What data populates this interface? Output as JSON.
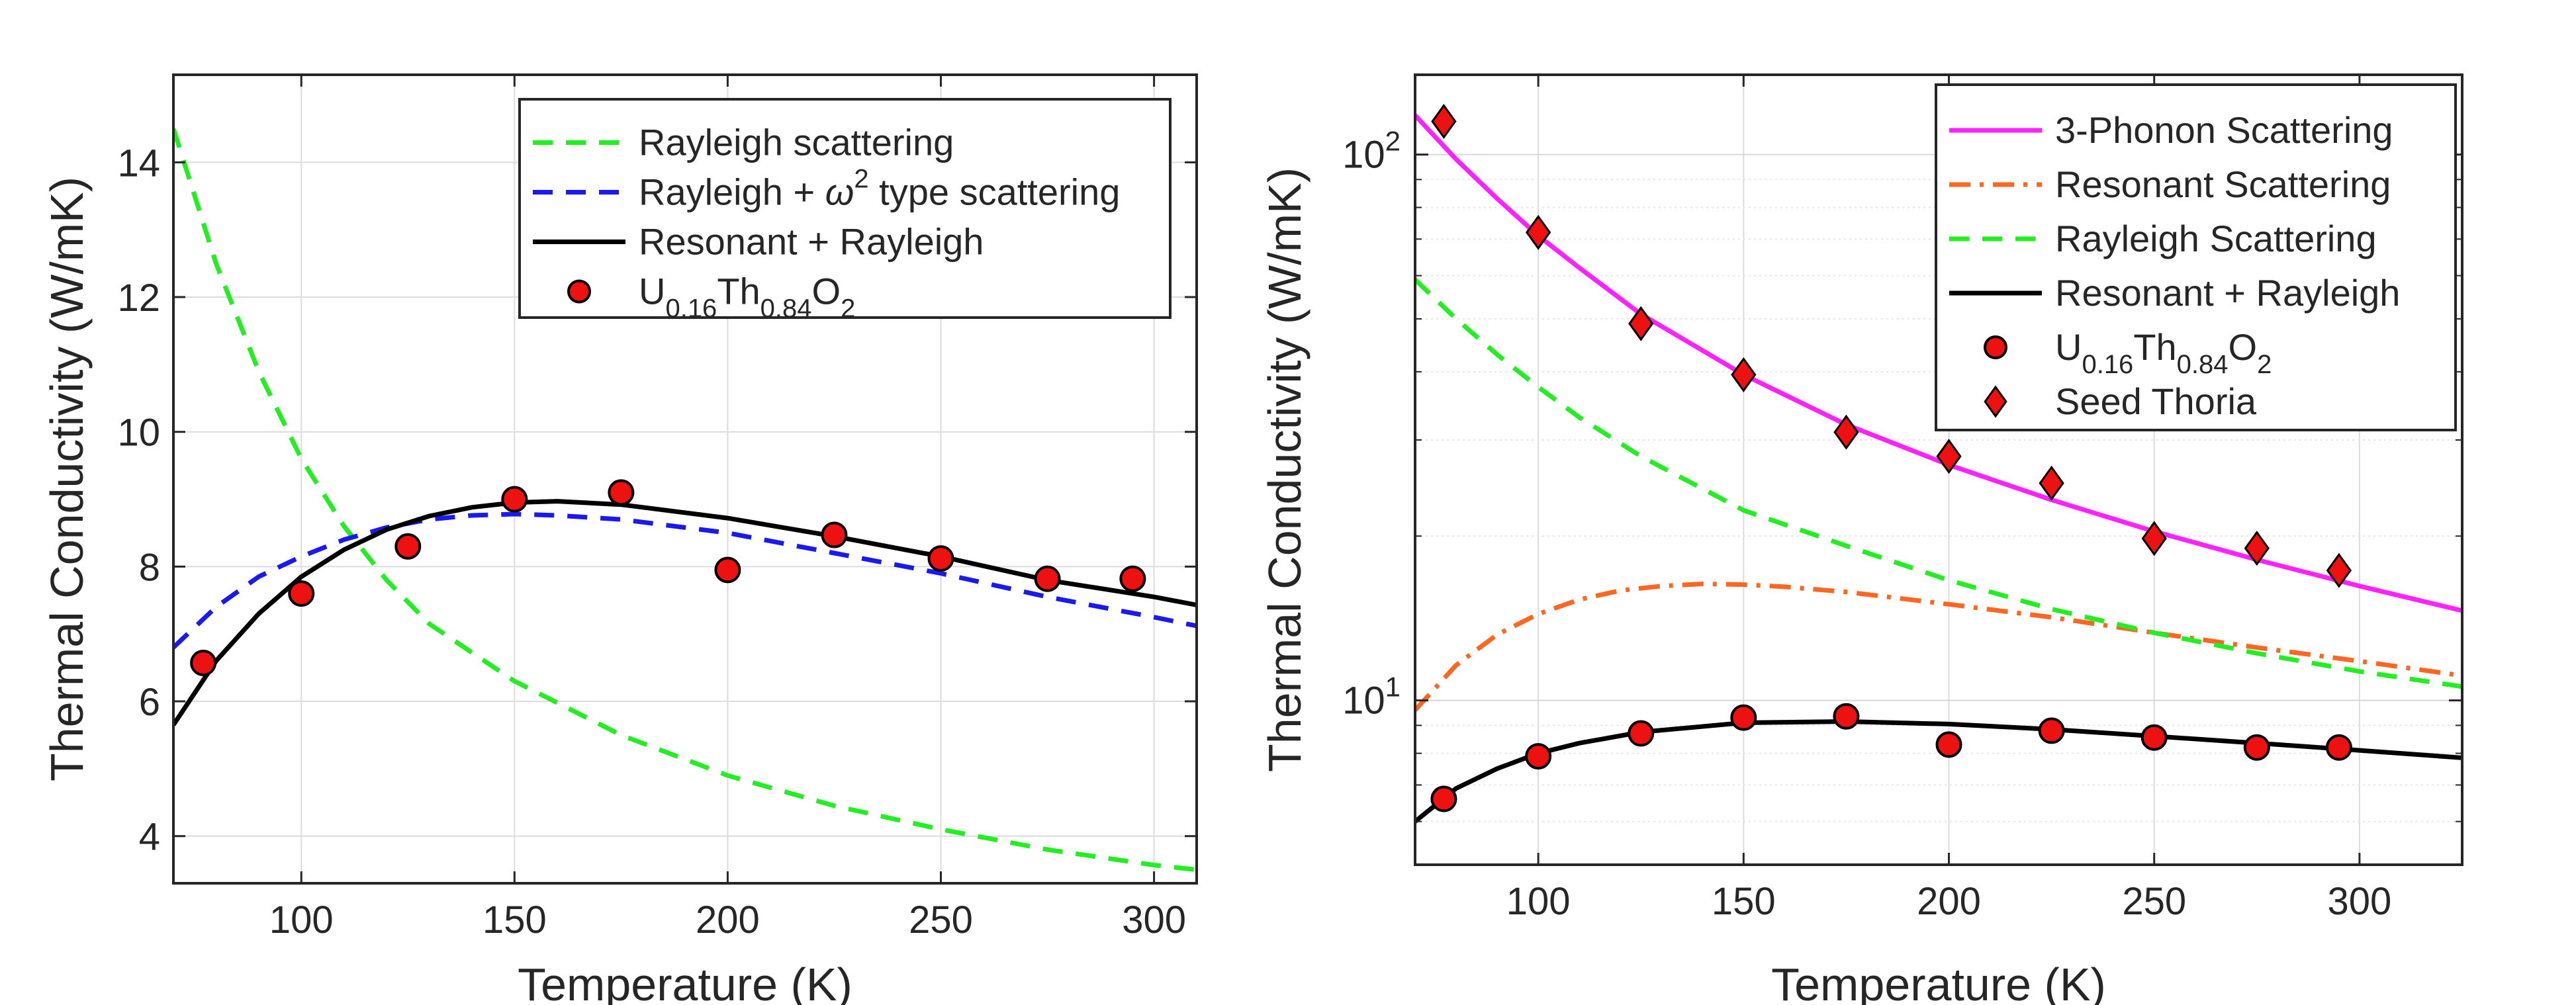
{
  "chart_data": [
    {
      "type": "line",
      "xlabel": "Temperature (K)",
      "ylabel": "Thermal Conductivity (W/mK)",
      "xlim": [
        70,
        310
      ],
      "ylim": [
        3.3,
        15.3
      ],
      "yscale": "linear",
      "grid": true,
      "legend_position": "top-right",
      "xticks": [
        "100",
        "150",
        "200",
        "250",
        "300"
      ],
      "yticks": [
        "4",
        "6",
        "8",
        "10",
        "12",
        "14"
      ],
      "series": [
        {
          "name": "Rayleigh scattering",
          "style": "dashed",
          "color": "#22ee22",
          "x": [
            70,
            80,
            90,
            100,
            110,
            120,
            130,
            150,
            175,
            200,
            225,
            250,
            275,
            300,
            310
          ],
          "y": [
            14.5,
            12.5,
            10.9,
            9.6,
            8.6,
            7.8,
            7.15,
            6.3,
            5.5,
            4.9,
            4.45,
            4.1,
            3.8,
            3.57,
            3.5
          ]
        },
        {
          "name": "Rayleigh + ω² type scattering",
          "name_parts": [
            "Rayleigh + ",
            "ω",
            "2",
            " type scattering"
          ],
          "style": "dashed",
          "color": "#1a1aee",
          "x": [
            70,
            80,
            90,
            100,
            110,
            120,
            130,
            140,
            150,
            160,
            175,
            200,
            225,
            250,
            275,
            300,
            310
          ],
          "y": [
            6.8,
            7.4,
            7.85,
            8.15,
            8.4,
            8.58,
            8.7,
            8.76,
            8.78,
            8.76,
            8.7,
            8.5,
            8.2,
            7.9,
            7.55,
            7.25,
            7.12
          ]
        },
        {
          "name": "Resonant + Rayleigh",
          "style": "solid",
          "color": "#000000",
          "x": [
            70,
            80,
            90,
            100,
            110,
            120,
            130,
            140,
            150,
            160,
            175,
            200,
            225,
            250,
            275,
            300,
            310
          ],
          "y": [
            5.65,
            6.6,
            7.3,
            7.85,
            8.25,
            8.55,
            8.75,
            8.88,
            8.95,
            8.97,
            8.92,
            8.72,
            8.45,
            8.15,
            7.8,
            7.55,
            7.43
          ]
        },
        {
          "name": "U0.16Th0.84O2",
          "name_parts": [
            "U",
            "0.16",
            "Th",
            "0.84",
            "O",
            "2"
          ],
          "style": "markers",
          "marker": "circle",
          "color": "#ee1111",
          "x": [
            77,
            100,
            125,
            150,
            175,
            200,
            225,
            250,
            275,
            295
          ],
          "y": [
            6.57,
            7.6,
            8.3,
            9.0,
            9.1,
            7.95,
            8.47,
            8.12,
            7.82,
            7.82
          ]
        }
      ]
    },
    {
      "type": "line",
      "xlabel": "Temperature (K)",
      "ylabel": "Thermal Conductivity (W/mK)",
      "xlim": [
        70,
        325
      ],
      "ylim": [
        5.0,
        140
      ],
      "yscale": "log",
      "grid": true,
      "legend_position": "top-right",
      "xticks": [
        "100",
        "150",
        "200",
        "250",
        "300"
      ],
      "yticks": [
        {
          "base": "10",
          "exp": "1",
          "value": 10
        },
        {
          "base": "10",
          "exp": "2",
          "value": 100
        }
      ],
      "series": [
        {
          "name": "3-Phonon Scattering",
          "style": "solid",
          "color": "#ff22ff",
          "x": [
            70,
            80,
            90,
            100,
            110,
            125,
            150,
            175,
            200,
            225,
            250,
            275,
            300,
            325
          ],
          "y": [
            118,
            98,
            83,
            71,
            62,
            51,
            39.5,
            32,
            27,
            23.3,
            20.4,
            18.1,
            16.2,
            14.6
          ]
        },
        {
          "name": "Resonant Scattering",
          "style": "dashdot",
          "color": "#ff6622",
          "x": [
            70,
            80,
            90,
            100,
            110,
            120,
            130,
            140,
            150,
            160,
            175,
            200,
            225,
            250,
            275,
            300,
            325
          ],
          "y": [
            9.6,
            11.6,
            13.2,
            14.4,
            15.3,
            15.9,
            16.2,
            16.35,
            16.3,
            16.15,
            15.8,
            15.0,
            14.2,
            13.3,
            12.5,
            11.8,
            11.1
          ]
        },
        {
          "name": "Rayleigh Scattering",
          "style": "dashed",
          "color": "#22ee22",
          "x": [
            70,
            80,
            90,
            100,
            110,
            125,
            150,
            175,
            200,
            225,
            250,
            275,
            300,
            325
          ],
          "y": [
            59,
            50,
            43,
            37.5,
            33,
            28,
            22.3,
            19.2,
            16.6,
            14.7,
            13.3,
            12.2,
            11.3,
            10.6
          ]
        },
        {
          "name": "Resonant + Rayleigh",
          "style": "solid",
          "color": "#000000",
          "x": [
            70,
            80,
            90,
            100,
            110,
            125,
            150,
            175,
            200,
            225,
            250,
            275,
            300,
            325
          ],
          "y": [
            6.0,
            6.9,
            7.5,
            8.0,
            8.35,
            8.75,
            9.1,
            9.15,
            9.05,
            8.85,
            8.6,
            8.35,
            8.1,
            7.85
          ]
        },
        {
          "name": "U0.16Th0.84O2",
          "name_parts": [
            "U",
            "0.16",
            "Th",
            "0.84",
            "O",
            "2"
          ],
          "style": "markers",
          "marker": "circle",
          "color": "#ee1111",
          "x": [
            77,
            100,
            125,
            150,
            175,
            200,
            225,
            250,
            275,
            295
          ],
          "y": [
            6.6,
            7.9,
            8.7,
            9.3,
            9.35,
            8.3,
            8.8,
            8.55,
            8.2,
            8.2
          ]
        },
        {
          "name": "Seed Thoria",
          "style": "markers",
          "marker": "diamond",
          "color": "#ee1111",
          "x": [
            77,
            100,
            125,
            150,
            175,
            200,
            225,
            250,
            275,
            295
          ],
          "y": [
            115,
            72,
            49,
            39.5,
            31,
            28,
            25,
            19.8,
            19.0,
            17.3
          ]
        }
      ]
    }
  ]
}
